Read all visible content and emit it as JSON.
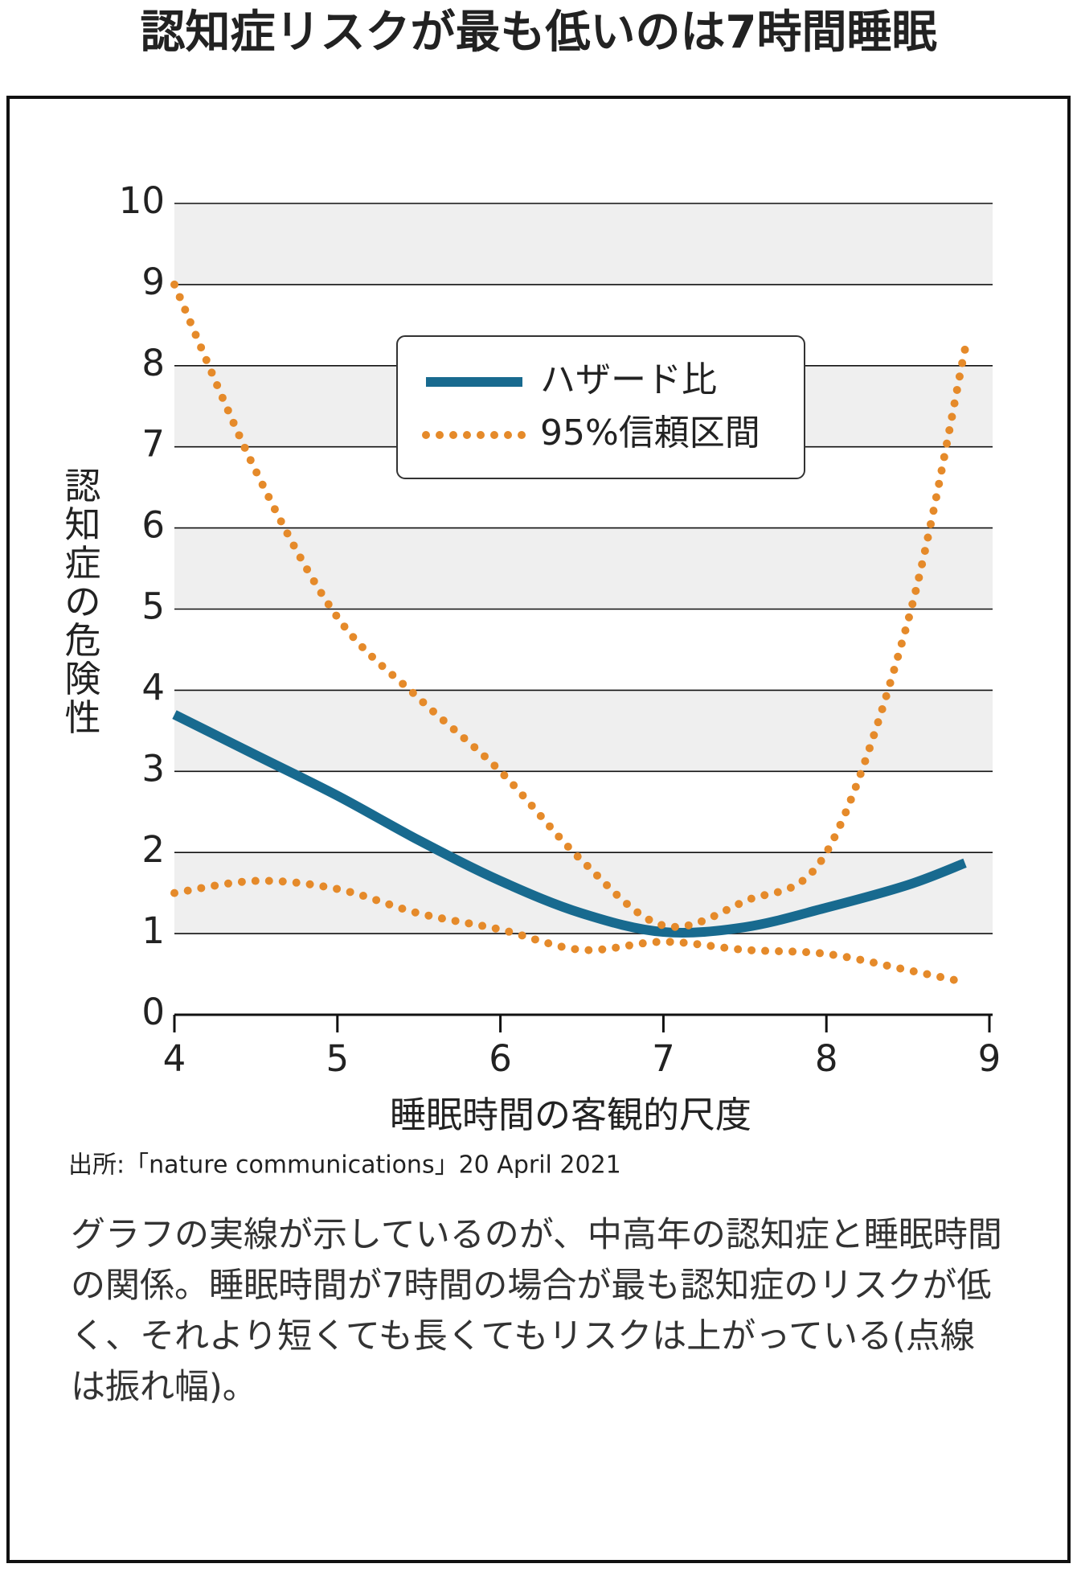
{
  "chart_data": {
    "type": "line",
    "title": "認知症リスクが最も低いのは7時間睡眠",
    "x_label": "睡眠時間の客観的尺度",
    "y_label": "認知症の危険性",
    "source": "出所:「nature communications」20 April 2021",
    "caption": "グラフの実線が示しているのが、中高年の認知症と睡眠時間の関係。睡眠時間が7時間の場合が最も認知症のリスクが低く、それより短くても長くてもリスクは上がっている(点線は振れ幅)。",
    "x": [
      4,
      4.5,
      5,
      5.5,
      6,
      6.5,
      7,
      7.5,
      8,
      8.5,
      8.85
    ],
    "series": [
      {
        "name": "ハザード比",
        "color": "#186a8f",
        "style": "solid",
        "values": [
          3.7,
          3.2,
          2.7,
          2.15,
          1.65,
          1.25,
          1.02,
          1.08,
          1.32,
          1.6,
          1.87
        ]
      },
      {
        "name": "95%信頼区間",
        "color": "#e58a2a",
        "style": "dotted",
        "values": [
          9.0,
          6.7,
          4.9,
          3.9,
          3.0,
          1.9,
          1.1,
          1.4,
          2.0,
          4.85,
          8.2
        ],
        "lower": [
          1.5,
          1.65,
          1.55,
          1.25,
          1.05,
          0.8,
          0.9,
          0.8,
          0.75,
          0.55,
          0.4
        ]
      }
    ],
    "xlim": [
      4,
      9
    ],
    "xticks": [
      4,
      5,
      6,
      7,
      8,
      9
    ],
    "ylim": [
      0,
      10
    ],
    "yticks": [
      0,
      1,
      2,
      3,
      4,
      5,
      6,
      7,
      8,
      9,
      10
    ],
    "grid": true,
    "band_color": "#efefef"
  }
}
